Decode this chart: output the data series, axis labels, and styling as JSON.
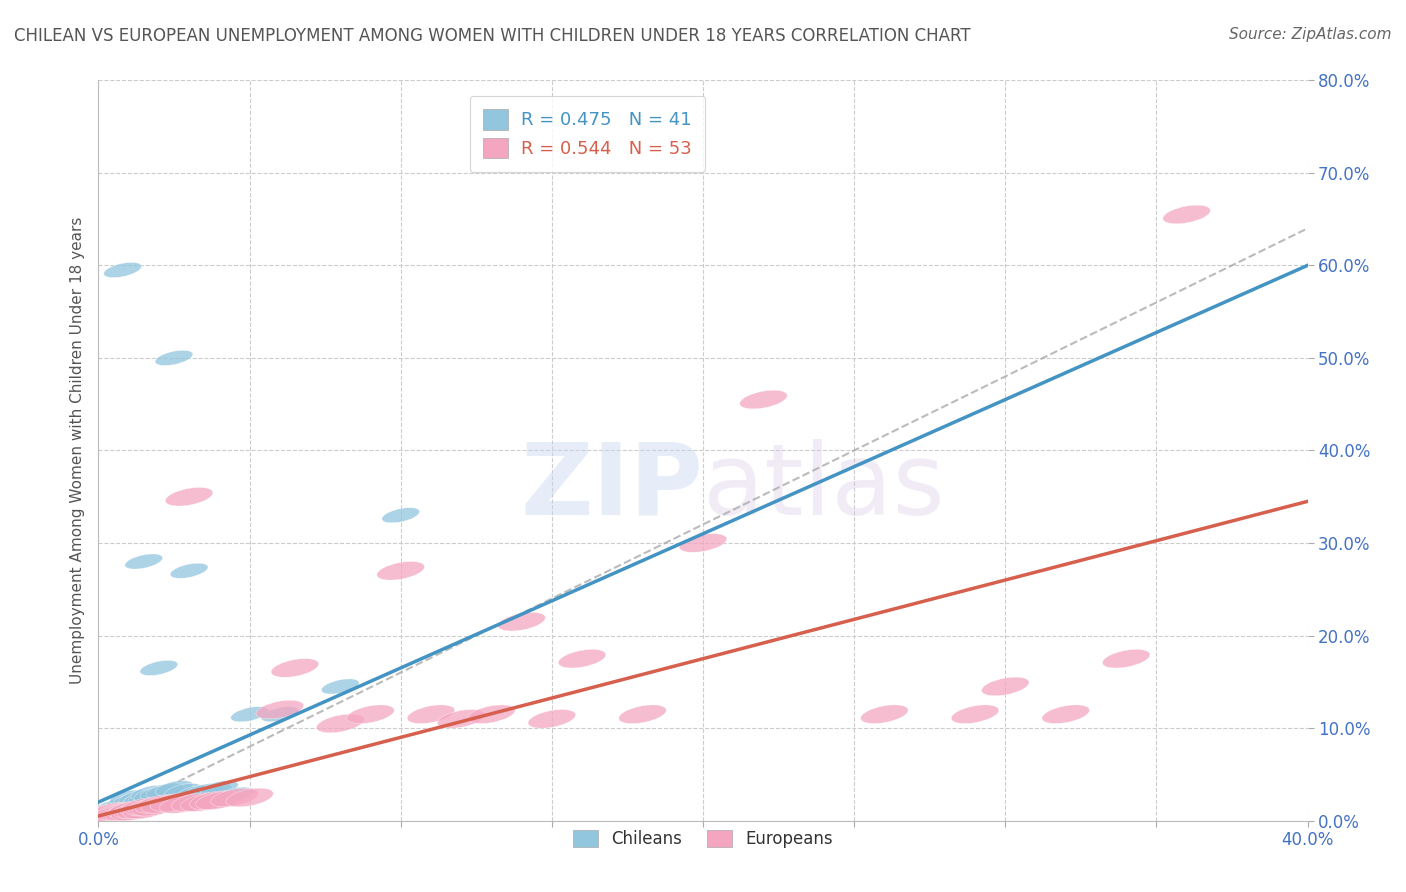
{
  "title": "CHILEAN VS EUROPEAN UNEMPLOYMENT AMONG WOMEN WITH CHILDREN UNDER 18 YEARS CORRELATION CHART",
  "source": "Source: ZipAtlas.com",
  "ylabel": "Unemployment Among Women with Children Under 18 years",
  "xlim": [
    0.0,
    0.4
  ],
  "ylim": [
    0.0,
    0.8
  ],
  "chilean_color": "#92c5de",
  "european_color": "#f4a6c0",
  "chilean_line_color": "#4393c3",
  "european_line_color": "#d6604d",
  "ref_line_color": "#aaaaaa",
  "R_chilean": 0.475,
  "N_chilean": 41,
  "R_european": 0.544,
  "N_european": 53,
  "background_color": "#ffffff",
  "grid_color": "#cccccc",
  "title_color": "#555555",
  "axis_label_color": "#555555",
  "tick_label_color": "#4472c4",
  "chilean_line_slope": 1.45,
  "chilean_line_intercept": 0.02,
  "european_line_slope": 0.85,
  "european_line_intercept": 0.005,
  "ref_line_slope": 1.6,
  "ref_line_intercept": 0.0,
  "chilean_x": [
    0.001,
    0.002,
    0.002,
    0.003,
    0.003,
    0.004,
    0.004,
    0.005,
    0.005,
    0.006,
    0.007,
    0.008,
    0.009,
    0.01,
    0.01,
    0.011,
    0.012,
    0.013,
    0.014,
    0.015,
    0.016,
    0.017,
    0.018,
    0.02,
    0.022,
    0.025,
    0.028,
    0.03,
    0.032,
    0.035,
    0.038,
    0.04,
    0.045,
    0.05,
    0.06,
    0.08,
    0.1,
    0.02,
    0.008,
    0.015,
    0.025
  ],
  "chilean_y": [
    0.005,
    0.005,
    0.01,
    0.005,
    0.01,
    0.008,
    0.012,
    0.01,
    0.015,
    0.012,
    0.015,
    0.018,
    0.015,
    0.02,
    0.025,
    0.022,
    0.02,
    0.025,
    0.022,
    0.025,
    0.025,
    0.03,
    0.028,
    0.03,
    0.032,
    0.035,
    0.032,
    0.27,
    0.03,
    0.032,
    0.032,
    0.035,
    0.028,
    0.115,
    0.115,
    0.145,
    0.33,
    0.165,
    0.595,
    0.28,
    0.5
  ],
  "european_x": [
    0.001,
    0.002,
    0.002,
    0.003,
    0.003,
    0.004,
    0.005,
    0.005,
    0.006,
    0.007,
    0.008,
    0.009,
    0.01,
    0.011,
    0.012,
    0.013,
    0.014,
    0.015,
    0.016,
    0.017,
    0.018,
    0.019,
    0.02,
    0.022,
    0.025,
    0.028,
    0.03,
    0.032,
    0.035,
    0.038,
    0.04,
    0.045,
    0.05,
    0.06,
    0.065,
    0.08,
    0.09,
    0.1,
    0.11,
    0.12,
    0.13,
    0.14,
    0.15,
    0.16,
    0.18,
    0.2,
    0.22,
    0.26,
    0.29,
    0.3,
    0.32,
    0.34,
    0.36
  ],
  "european_y": [
    0.005,
    0.005,
    0.008,
    0.005,
    0.008,
    0.008,
    0.008,
    0.01,
    0.008,
    0.01,
    0.01,
    0.01,
    0.01,
    0.012,
    0.01,
    0.012,
    0.012,
    0.015,
    0.012,
    0.015,
    0.015,
    0.015,
    0.018,
    0.018,
    0.02,
    0.018,
    0.35,
    0.02,
    0.02,
    0.022,
    0.022,
    0.025,
    0.025,
    0.12,
    0.165,
    0.105,
    0.115,
    0.27,
    0.115,
    0.11,
    0.115,
    0.215,
    0.11,
    0.175,
    0.115,
    0.3,
    0.455,
    0.115,
    0.115,
    0.145,
    0.115,
    0.175,
    0.655
  ]
}
